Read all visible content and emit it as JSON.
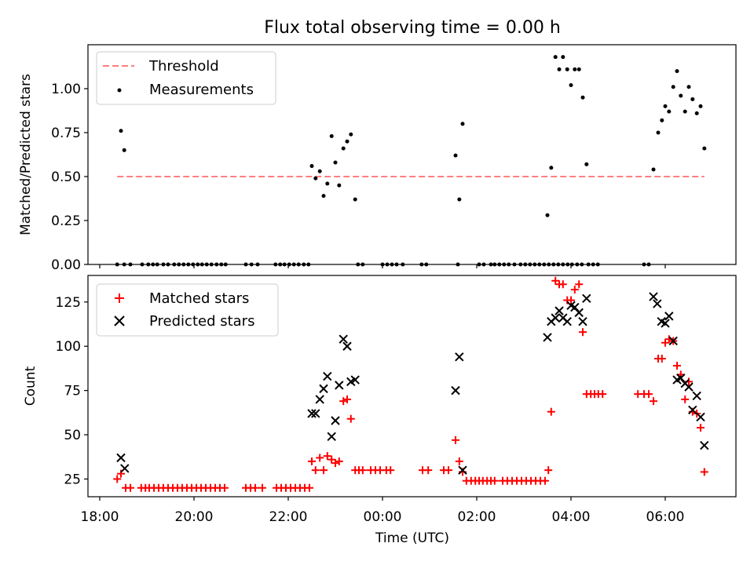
{
  "chart_data": [
    {
      "type": "scatter",
      "title": "Flux total observing time = 0.00 h",
      "ylabel": "Matched/Predicted stars",
      "xlabel": "",
      "x_unit": "hours after 18:00 UTC",
      "xlim": [
        -0.25,
        13.5
      ],
      "ylim": [
        0,
        1.25
      ],
      "yticks": [
        0.0,
        0.25,
        0.5,
        0.75,
        1.0
      ],
      "ytick_labels": [
        "0.00",
        "0.25",
        "0.50",
        "0.75",
        "1.00"
      ],
      "legend": [
        {
          "label": "Threshold",
          "color": "#ff7f7f",
          "marker": "dashed-line"
        },
        {
          "label": "Measurements",
          "color": "#000000",
          "marker": "dot"
        }
      ],
      "legend_position": "upper-left",
      "threshold": {
        "y": 0.5,
        "x_start": 0.37,
        "x_end": 12.83
      },
      "series": [
        {
          "name": "Measurements",
          "color": "#000000",
          "points": [
            [
              0.37,
              0
            ],
            [
              0.52,
              0
            ],
            [
              0.65,
              0
            ],
            [
              0.9,
              0
            ],
            [
              1.03,
              0
            ],
            [
              1.13,
              0
            ],
            [
              1.22,
              0
            ],
            [
              1.35,
              0
            ],
            [
              1.45,
              0
            ],
            [
              1.58,
              0
            ],
            [
              1.68,
              0
            ],
            [
              1.78,
              0
            ],
            [
              1.88,
              0
            ],
            [
              1.98,
              0
            ],
            [
              2.08,
              0
            ],
            [
              2.17,
              0
            ],
            [
              2.27,
              0
            ],
            [
              2.37,
              0
            ],
            [
              2.48,
              0
            ],
            [
              2.58,
              0
            ],
            [
              2.67,
              0
            ],
            [
              3.1,
              0
            ],
            [
              3.22,
              0
            ],
            [
              3.35,
              0
            ],
            [
              3.73,
              0
            ],
            [
              3.83,
              0
            ],
            [
              3.92,
              0
            ],
            [
              4.02,
              0
            ],
            [
              4.12,
              0
            ],
            [
              4.22,
              0
            ],
            [
              4.33,
              0
            ],
            [
              4.43,
              0
            ],
            [
              5.48,
              0
            ],
            [
              5.58,
              0
            ],
            [
              6.0,
              0
            ],
            [
              6.1,
              0
            ],
            [
              6.2,
              0
            ],
            [
              6.3,
              0
            ],
            [
              6.43,
              0
            ],
            [
              6.83,
              0
            ],
            [
              6.93,
              0
            ],
            [
              7.6,
              0
            ],
            [
              8.05,
              0
            ],
            [
              8.15,
              0
            ],
            [
              8.3,
              0
            ],
            [
              8.38,
              0
            ],
            [
              8.48,
              0
            ],
            [
              8.58,
              0
            ],
            [
              8.68,
              0
            ],
            [
              8.8,
              0
            ],
            [
              8.93,
              0
            ],
            [
              9.03,
              0
            ],
            [
              9.13,
              0
            ],
            [
              9.23,
              0
            ],
            [
              9.33,
              0
            ],
            [
              9.43,
              0
            ],
            [
              9.53,
              0
            ],
            [
              9.63,
              0
            ],
            [
              9.73,
              0
            ],
            [
              9.83,
              0
            ],
            [
              9.93,
              0
            ],
            [
              10.02,
              0
            ],
            [
              10.13,
              0
            ],
            [
              10.23,
              0
            ],
            [
              10.37,
              0
            ],
            [
              10.47,
              0
            ],
            [
              10.57,
              0
            ],
            [
              11.55,
              0
            ],
            [
              11.65,
              0
            ],
            [
              0.45,
              0.76
            ],
            [
              0.52,
              0.65
            ],
            [
              4.5,
              0.56
            ],
            [
              4.58,
              0.49
            ],
            [
              4.67,
              0.53
            ],
            [
              4.75,
              0.39
            ],
            [
              4.83,
              0.46
            ],
            [
              4.92,
              0.73
            ],
            [
              5.0,
              0.58
            ],
            [
              5.08,
              0.45
            ],
            [
              5.17,
              0.66
            ],
            [
              5.25,
              0.7
            ],
            [
              5.33,
              0.74
            ],
            [
              5.42,
              0.37
            ],
            [
              7.55,
              0.62
            ],
            [
              7.63,
              0.37
            ],
            [
              7.7,
              0.8
            ],
            [
              9.5,
              0.28
            ],
            [
              9.58,
              0.55
            ],
            [
              9.67,
              1.18
            ],
            [
              9.75,
              1.11
            ],
            [
              9.83,
              1.18
            ],
            [
              9.92,
              1.11
            ],
            [
              10.0,
              1.02
            ],
            [
              10.08,
              1.11
            ],
            [
              10.17,
              1.11
            ],
            [
              10.25,
              0.95
            ],
            [
              10.33,
              0.57
            ],
            [
              11.75,
              0.54
            ],
            [
              11.85,
              0.75
            ],
            [
              11.93,
              0.82
            ],
            [
              12.0,
              0.9
            ],
            [
              12.08,
              0.87
            ],
            [
              12.17,
              1.01
            ],
            [
              12.25,
              1.1
            ],
            [
              12.33,
              0.96
            ],
            [
              12.42,
              0.87
            ],
            [
              12.5,
              1.01
            ],
            [
              12.58,
              0.94
            ],
            [
              12.67,
              0.86
            ],
            [
              12.75,
              0.9
            ],
            [
              12.83,
              0.66
            ]
          ]
        }
      ]
    },
    {
      "type": "scatter",
      "title": "",
      "ylabel": "Count",
      "xlabel": "Time (UTC)",
      "x_unit": "hours after 18:00 UTC",
      "xlim": [
        -0.25,
        13.5
      ],
      "ylim": [
        15,
        140
      ],
      "yticks": [
        25,
        50,
        75,
        100,
        125
      ],
      "ytick_labels": [
        "25",
        "50",
        "75",
        "100",
        "125"
      ],
      "xticks": [
        0,
        2,
        4,
        6,
        8,
        10,
        12
      ],
      "xtick_labels": [
        "18:00",
        "20:00",
        "22:00",
        "00:00",
        "02:00",
        "04:00",
        "06:00"
      ],
      "legend": [
        {
          "label": "Matched stars",
          "color": "#ff0000",
          "marker": "plus"
        },
        {
          "label": "Predicted stars",
          "color": "#000000",
          "marker": "x"
        }
      ],
      "legend_position": "upper-left",
      "series": [
        {
          "name": "Matched stars",
          "color": "#ff0000",
          "marker": "plus",
          "points": [
            [
              0.37,
              25
            ],
            [
              0.45,
              28
            ],
            [
              0.55,
              20
            ],
            [
              0.65,
              20
            ],
            [
              0.88,
              20
            ],
            [
              0.97,
              20
            ],
            [
              1.05,
              20
            ],
            [
              1.15,
              20
            ],
            [
              1.25,
              20
            ],
            [
              1.35,
              20
            ],
            [
              1.45,
              20
            ],
            [
              1.55,
              20
            ],
            [
              1.65,
              20
            ],
            [
              1.75,
              20
            ],
            [
              1.85,
              20
            ],
            [
              1.95,
              20
            ],
            [
              2.05,
              20
            ],
            [
              2.15,
              20
            ],
            [
              2.25,
              20
            ],
            [
              2.35,
              20
            ],
            [
              2.45,
              20
            ],
            [
              2.55,
              20
            ],
            [
              2.65,
              20
            ],
            [
              3.1,
              20
            ],
            [
              3.2,
              20
            ],
            [
              3.3,
              20
            ],
            [
              3.45,
              20
            ],
            [
              3.75,
              20
            ],
            [
              3.85,
              20
            ],
            [
              3.95,
              20
            ],
            [
              4.05,
              20
            ],
            [
              4.15,
              20
            ],
            [
              4.25,
              20
            ],
            [
              4.35,
              20
            ],
            [
              4.45,
              20
            ],
            [
              4.5,
              35
            ],
            [
              4.58,
              30
            ],
            [
              4.67,
              37
            ],
            [
              4.75,
              30
            ],
            [
              4.83,
              38
            ],
            [
              4.92,
              36
            ],
            [
              5.0,
              34
            ],
            [
              5.08,
              35
            ],
            [
              5.17,
              69
            ],
            [
              5.25,
              70
            ],
            [
              5.33,
              59
            ],
            [
              5.42,
              30
            ],
            [
              5.5,
              30
            ],
            [
              5.58,
              30
            ],
            [
              5.75,
              30
            ],
            [
              5.85,
              30
            ],
            [
              5.95,
              30
            ],
            [
              6.08,
              30
            ],
            [
              6.17,
              30
            ],
            [
              6.85,
              30
            ],
            [
              6.97,
              30
            ],
            [
              7.3,
              30
            ],
            [
              7.4,
              30
            ],
            [
              7.55,
              47
            ],
            [
              7.63,
              35
            ],
            [
              7.7,
              29
            ],
            [
              7.78,
              24
            ],
            [
              7.88,
              24
            ],
            [
              7.97,
              24
            ],
            [
              8.05,
              24
            ],
            [
              8.13,
              24
            ],
            [
              8.22,
              24
            ],
            [
              8.3,
              24
            ],
            [
              8.38,
              24
            ],
            [
              8.55,
              24
            ],
            [
              8.65,
              24
            ],
            [
              8.75,
              24
            ],
            [
              8.85,
              24
            ],
            [
              8.95,
              24
            ],
            [
              9.05,
              24
            ],
            [
              9.15,
              24
            ],
            [
              9.25,
              24
            ],
            [
              9.35,
              24
            ],
            [
              9.45,
              24
            ],
            [
              9.52,
              30
            ],
            [
              9.58,
              63
            ],
            [
              9.67,
              137
            ],
            [
              9.75,
              135
            ],
            [
              9.83,
              135
            ],
            [
              9.92,
              126
            ],
            [
              10.0,
              126
            ],
            [
              10.08,
              132
            ],
            [
              10.17,
              135
            ],
            [
              10.25,
              108
            ],
            [
              10.33,
              73
            ],
            [
              10.42,
              73
            ],
            [
              10.5,
              73
            ],
            [
              10.58,
              73
            ],
            [
              10.67,
              73
            ],
            [
              11.42,
              73
            ],
            [
              11.55,
              73
            ],
            [
              11.65,
              73
            ],
            [
              11.75,
              69
            ],
            [
              11.85,
              93
            ],
            [
              11.93,
              93
            ],
            [
              12.0,
              102
            ],
            [
              12.08,
              104
            ],
            [
              12.17,
              103
            ],
            [
              12.25,
              89
            ],
            [
              12.33,
              84
            ],
            [
              12.42,
              70
            ],
            [
              12.5,
              80
            ],
            [
              12.58,
              63
            ],
            [
              12.67,
              62
            ],
            [
              12.75,
              54
            ],
            [
              12.83,
              29
            ]
          ]
        },
        {
          "name": "Predicted stars",
          "color": "#000000",
          "marker": "x",
          "points": [
            [
              0.45,
              37
            ],
            [
              0.53,
              31
            ],
            [
              4.5,
              62
            ],
            [
              4.58,
              62
            ],
            [
              4.67,
              70
            ],
            [
              4.75,
              76
            ],
            [
              4.83,
              83
            ],
            [
              4.92,
              49
            ],
            [
              5.0,
              58
            ],
            [
              5.08,
              78
            ],
            [
              5.17,
              104
            ],
            [
              5.25,
              100
            ],
            [
              5.33,
              80
            ],
            [
              5.42,
              81
            ],
            [
              7.55,
              75
            ],
            [
              7.63,
              94
            ],
            [
              7.7,
              30
            ],
            [
              9.5,
              105
            ],
            [
              9.58,
              114
            ],
            [
              9.67,
              116
            ],
            [
              9.75,
              120
            ],
            [
              9.83,
              116
            ],
            [
              9.92,
              114
            ],
            [
              10.0,
              123
            ],
            [
              10.08,
              122
            ],
            [
              10.17,
              119
            ],
            [
              10.25,
              114
            ],
            [
              10.33,
              127
            ],
            [
              11.75,
              128
            ],
            [
              11.83,
              124
            ],
            [
              11.92,
              114
            ],
            [
              12.0,
              113
            ],
            [
              12.08,
              117
            ],
            [
              12.17,
              103
            ],
            [
              12.25,
              81
            ],
            [
              12.33,
              82
            ],
            [
              12.42,
              79
            ],
            [
              12.5,
              77
            ],
            [
              12.58,
              64
            ],
            [
              12.67,
              72
            ],
            [
              12.75,
              60
            ],
            [
              12.83,
              44
            ]
          ]
        }
      ]
    }
  ]
}
